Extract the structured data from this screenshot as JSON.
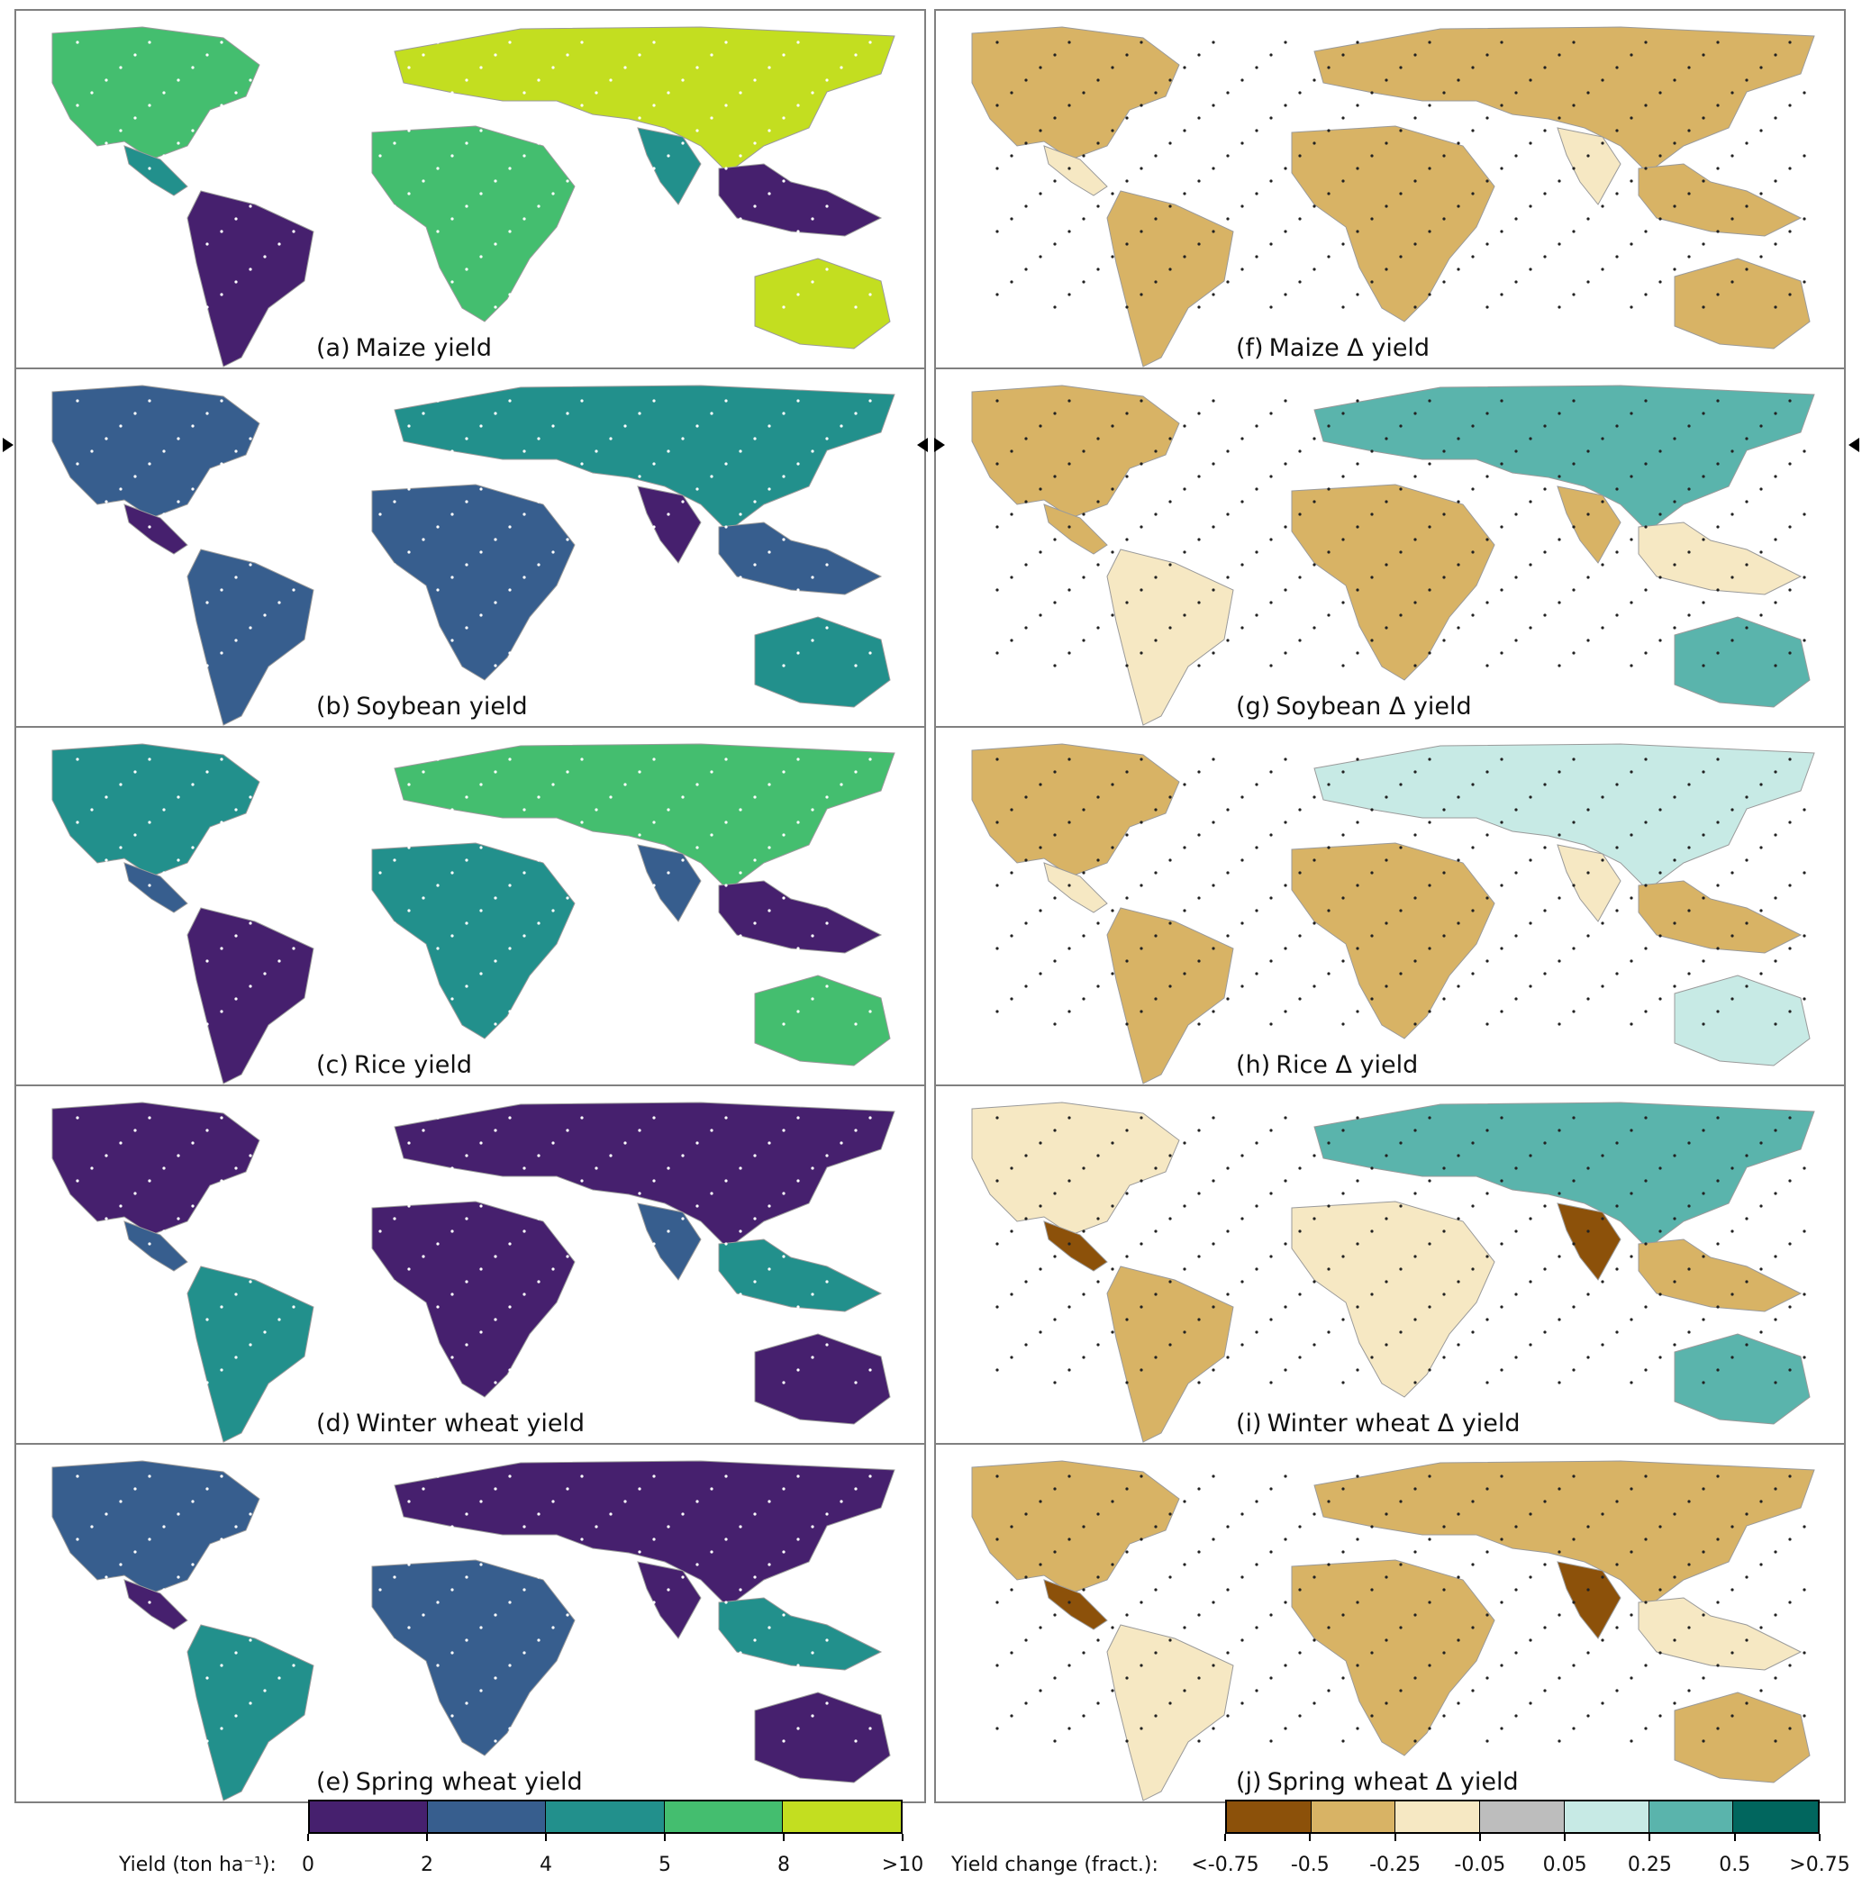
{
  "panels_left": [
    {
      "letter": "(a)",
      "title": "Maize yield"
    },
    {
      "letter": "(b)",
      "title": "Soybean yield"
    },
    {
      "letter": "(c)",
      "title": "Rice yield"
    },
    {
      "letter": "(d)",
      "title": "Winter wheat yield"
    },
    {
      "letter": "(e)",
      "title": "Spring wheat yield"
    }
  ],
  "panels_right": [
    {
      "letter": "(f)",
      "title": "Maize Δ yield"
    },
    {
      "letter": "(g)",
      "title": "Soybean Δ yield"
    },
    {
      "letter": "(h)",
      "title": "Rice Δ yield"
    },
    {
      "letter": "(i)",
      "title": "Winter wheat Δ yield"
    },
    {
      "letter": "(j)",
      "title": "Spring wheat Δ yield"
    }
  ],
  "yield_colorbar": {
    "label": "Yield (ton ha⁻¹):",
    "ticks": [
      "0",
      "2",
      "4",
      "5",
      "8",
      ">10"
    ],
    "colors": [
      "#46206e",
      "#375e8e",
      "#22908c",
      "#44be6f",
      "#c3de20"
    ]
  },
  "change_colorbar": {
    "label": "Yield change (fract.):",
    "ticks": [
      "<-0.75",
      "-0.5",
      "-0.25",
      "-0.05",
      "0.05",
      "0.25",
      "0.5",
      ">0.75"
    ],
    "colors": [
      "#8c510a",
      "#d8b365",
      "#f6e8c3",
      "#bdbdbd",
      "#c7eae5",
      "#5ab4ac",
      "#01665e"
    ]
  },
  "map_palettes": {
    "yield": {
      "maize": [
        "#44be6f",
        "#22908c",
        "#46206e",
        "#c3de20"
      ],
      "soybean": [
        "#375e8e",
        "#46206e",
        "#375e8e",
        "#22908c"
      ],
      "rice": [
        "#22908c",
        "#375e8e",
        "#46206e",
        "#44be6f"
      ],
      "winter_wheat": [
        "#46206e",
        "#375e8e",
        "#22908c",
        "#46206e"
      ],
      "spring_wheat": [
        "#375e8e",
        "#46206e",
        "#22908c",
        "#46206e"
      ]
    },
    "change": {
      "maize": [
        "#d8b365",
        "#f6e8c3",
        "#d8b365",
        "#d8b365"
      ],
      "soybean": [
        "#d8b365",
        "#d8b365",
        "#f6e8c3",
        "#5ab4ac"
      ],
      "rice": [
        "#d8b365",
        "#f6e8c3",
        "#d8b365",
        "#c7eae5"
      ],
      "winter_wheat": [
        "#f6e8c3",
        "#8c510a",
        "#d8b365",
        "#5ab4ac"
      ],
      "spring_wheat": [
        "#d8b365",
        "#8c510a",
        "#f6e8c3",
        "#d8b365"
      ]
    }
  }
}
